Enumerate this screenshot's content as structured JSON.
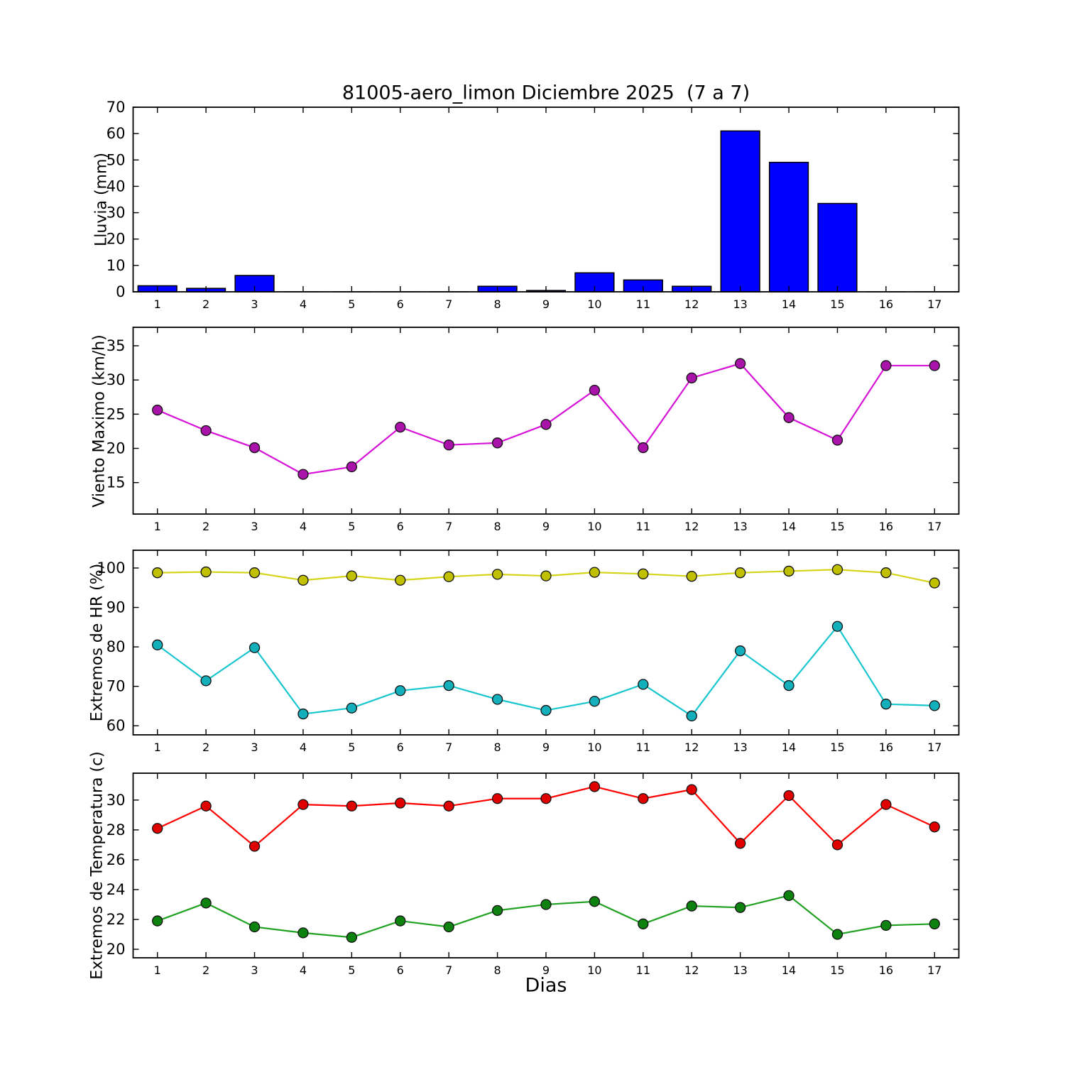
{
  "figure": {
    "title": "81005-aero_limon Diciembre 2025  (7 a 7)",
    "xlabel": "Dias",
    "background_color": "#ffffff",
    "axis_color": "#000000"
  },
  "chart_data": [
    {
      "id": "lluvia",
      "type": "bar",
      "ylabel": "Lluvia (mm)",
      "x": [
        1,
        2,
        3,
        4,
        5,
        6,
        7,
        8,
        9,
        10,
        11,
        12,
        13,
        14,
        15,
        16,
        17
      ],
      "values": [
        2.3,
        1.3,
        6.2,
        0,
        0,
        0,
        0,
        2.1,
        0.5,
        7.2,
        4.5,
        2.1,
        61.0,
        49.1,
        33.5,
        0,
        0
      ],
      "yticks": [
        0,
        10,
        20,
        30,
        40,
        50,
        60,
        70
      ],
      "ylim": [
        0,
        70
      ],
      "xlim": [
        0.5,
        17.5
      ],
      "grid": false,
      "bar_color": "#0000ff",
      "bar_edge_color": "#000000",
      "bar_width": 0.8
    },
    {
      "id": "viento",
      "type": "line",
      "ylabel": "Viento Maximo (km/h)",
      "x": [
        1,
        2,
        3,
        4,
        5,
        6,
        7,
        8,
        9,
        10,
        11,
        12,
        13,
        14,
        15,
        16,
        17
      ],
      "series": [
        {
          "name": "viento-maximo",
          "values": [
            25.6,
            22.6,
            20.1,
            16.2,
            17.3,
            23.1,
            20.5,
            20.8,
            23.5,
            28.5,
            20.1,
            30.3,
            32.4,
            24.5,
            21.2,
            32.1,
            32.1
          ],
          "line_color": "#d613d6",
          "marker_color": "#a913a9"
        }
      ],
      "yticks": [
        15,
        20,
        25,
        30,
        35
      ],
      "ylim": [
        10.4,
        37.7
      ],
      "xlim": [
        0.5,
        17.5
      ],
      "grid": false
    },
    {
      "id": "hr",
      "type": "line",
      "ylabel": "Extremos de HR (%)",
      "x": [
        1,
        2,
        3,
        4,
        5,
        6,
        7,
        8,
        9,
        10,
        11,
        12,
        13,
        14,
        15,
        16,
        17
      ],
      "series": [
        {
          "name": "hr-maxima",
          "values": [
            98.8,
            99.0,
            98.8,
            96.9,
            98.0,
            96.9,
            97.8,
            98.4,
            98.0,
            98.9,
            98.5,
            97.9,
            98.8,
            99.2,
            99.6,
            98.8,
            96.2
          ],
          "line_color": "#d4d41a",
          "marker_color": "#c0c000"
        },
        {
          "name": "hr-minima",
          "values": [
            80.5,
            71.4,
            79.8,
            63.0,
            64.5,
            68.9,
            70.2,
            66.7,
            63.9,
            66.2,
            70.5,
            62.5,
            79.0,
            70.2,
            85.2,
            65.5,
            65.1
          ],
          "line_color": "#18c6ce",
          "marker_color": "#13b0bc"
        }
      ],
      "yticks": [
        60,
        70,
        80,
        90,
        100
      ],
      "ylim": [
        57.7,
        104.5
      ],
      "xlim": [
        0.5,
        17.5
      ],
      "grid": false
    },
    {
      "id": "temperatura",
      "type": "line",
      "ylabel": "Extremos de Temperatura (c)",
      "x": [
        1,
        2,
        3,
        4,
        5,
        6,
        7,
        8,
        9,
        10,
        11,
        12,
        13,
        14,
        15,
        16,
        17
      ],
      "series": [
        {
          "name": "temperatura-maxima",
          "values": [
            28.1,
            29.6,
            26.9,
            29.7,
            29.6,
            29.8,
            29.6,
            30.1,
            30.1,
            30.9,
            30.1,
            30.7,
            27.1,
            30.3,
            27.0,
            29.7,
            28.2
          ],
          "line_color": "#ff0000",
          "marker_color": "#e00000"
        },
        {
          "name": "temperatura-minima",
          "values": [
            21.9,
            23.1,
            21.5,
            21.1,
            20.8,
            21.9,
            21.5,
            22.6,
            23.0,
            23.2,
            21.7,
            22.9,
            22.8,
            23.6,
            21.0,
            21.6,
            21.7
          ],
          "line_color": "#21a121",
          "marker_color": "#0e820e"
        }
      ],
      "yticks": [
        20,
        22,
        24,
        26,
        28,
        30
      ],
      "ylim": [
        19.43,
        31.8
      ],
      "xlim": [
        0.5,
        17.5
      ],
      "grid": false
    }
  ]
}
